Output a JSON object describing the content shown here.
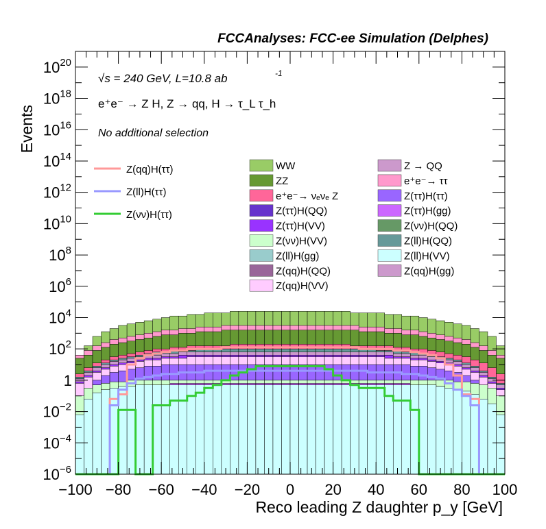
{
  "chart_data": {
    "type": "histogram",
    "title": "FCCAnalyses: FCC-ee Simulation (Delphes)",
    "xlabel": "Reco leading Z daughter p_y [GeV]",
    "ylabel": "Events",
    "xlim": [
      -100,
      100
    ],
    "ylim": [
      1e-06,
      1e+21
    ],
    "log_y": true,
    "x_ticks": [
      "-100",
      "-80",
      "-60",
      "-40",
      "-20",
      "0",
      "20",
      "40",
      "60",
      "80",
      "100"
    ],
    "y_ticks": [
      {
        "base": "10",
        "exp": "-6",
        "pow": -6
      },
      {
        "base": "10",
        "exp": "-4",
        "pow": -4
      },
      {
        "base": "10",
        "exp": "-2",
        "pow": -2
      },
      {
        "base": "1",
        "exp": "",
        "pow": 0
      },
      {
        "base": "10",
        "exp": "2",
        "pow": 2
      },
      {
        "base": "10",
        "exp": "4",
        "pow": 4
      },
      {
        "base": "10",
        "exp": "6",
        "pow": 6
      },
      {
        "base": "10",
        "exp": "8",
        "pow": 8
      },
      {
        "base": "10",
        "exp": "10",
        "pow": 10
      },
      {
        "base": "10",
        "exp": "12",
        "pow": 12
      },
      {
        "base": "10",
        "exp": "14",
        "pow": 14
      },
      {
        "base": "10",
        "exp": "16",
        "pow": 16
      },
      {
        "base": "10",
        "exp": "18",
        "pow": 18
      },
      {
        "base": "10",
        "exp": "20",
        "pow": 20
      }
    ],
    "annotations": {
      "energy": "√s = 240 GeV, L=10.8 ab",
      "energy_exp": "-1",
      "process": "e⁺e⁻ → Z H, Z → qq, H → τ_L τ_h",
      "selection": "No additional selection"
    },
    "stacked_legend": [
      {
        "name": "WW",
        "color": "#99cc66"
      },
      {
        "name": "ZZ",
        "color": "#669933"
      },
      {
        "name": "e⁺e⁻→ νₑνₑ Z",
        "color": "#ff6699"
      },
      {
        "name": "Z(ττ)H(QQ)",
        "color": "#6633cc"
      },
      {
        "name": "Z(ττ)H(VV)",
        "color": "#9933ff"
      },
      {
        "name": "Z(νν)H(VV)",
        "color": "#ccffcc"
      },
      {
        "name": "Z(ll)H(gg)",
        "color": "#99cccc"
      },
      {
        "name": "Z(qq)H(QQ)",
        "color": "#996699"
      },
      {
        "name": "Z(qq)H(VV)",
        "color": "#ffccff"
      },
      {
        "name": "Z → QQ",
        "color": "#cc99cc"
      },
      {
        "name": "e⁺e⁻→ ττ",
        "color": "#ff99cc"
      },
      {
        "name": "Z(ττ)H(ττ)",
        "color": "#9966ff"
      },
      {
        "name": "Z(ττ)H(gg)",
        "color": "#cc66ff"
      },
      {
        "name": "Z(νν)H(QQ)",
        "color": "#669966"
      },
      {
        "name": "Z(ll)H(QQ)",
        "color": "#669999"
      },
      {
        "name": "Z(ll)H(VV)",
        "color": "#ccffff"
      },
      {
        "name": "Z(qq)H(gg)",
        "color": "#cc99cc"
      }
    ],
    "line_series": [
      {
        "name": "Z(qq)H(ττ)",
        "color": "#ff9999"
      },
      {
        "name": "Z(ll)H(ττ)",
        "color": "#9999ff"
      },
      {
        "name": "Z(νν)H(ττ)",
        "color": "#33cc33"
      }
    ],
    "bins_x_low": [
      -100,
      -96,
      -92,
      -88,
      -84,
      -80,
      -76,
      -72,
      -68,
      -64,
      -60,
      -56,
      -52,
      -48,
      -44,
      -40,
      -36,
      -32,
      -28,
      -24,
      -20,
      -16,
      -12,
      -8,
      -4,
      0,
      4,
      8,
      12,
      16,
      20,
      24,
      28,
      32,
      36,
      40,
      44,
      48,
      52,
      56,
      60,
      64,
      68,
      72,
      76,
      80,
      84,
      88,
      92,
      96
    ],
    "stack_layers": [
      {
        "color": "#ccffff",
        "values": [
          -2.2,
          -1.2,
          -0.8,
          -0.6,
          -0.5,
          -0.4,
          -0.4,
          -0.3,
          -0.3,
          -0.3,
          -0.3,
          -0.3,
          -0.3,
          -0.3,
          -0.3,
          -0.3,
          -0.3,
          -0.3,
          -0.3,
          -0.3,
          -0.3,
          -0.3,
          -0.3,
          -0.3,
          -0.3,
          -0.3,
          -0.3,
          -0.3,
          -0.3,
          -0.3,
          -0.3,
          -0.3,
          -0.3,
          -0.3,
          -0.3,
          -0.3,
          -0.3,
          -0.3,
          -0.3,
          -0.3,
          -0.3,
          -0.3,
          -0.4,
          -0.5,
          -0.6,
          -0.7,
          -0.9,
          -1.2,
          -1.5,
          -2.2
        ]
      },
      {
        "color": "#99cccc",
        "values": [
          -6,
          -6,
          -6,
          -6,
          -2.5,
          -2.3,
          -2.1,
          -2.0,
          -1.9,
          -1.8,
          -1.7,
          -1.6,
          -1.6,
          -1.5,
          -1.5,
          -1.5,
          -1.4,
          -1.4,
          -1.4,
          -1.4,
          -1.4,
          -1.4,
          -1.4,
          -1.4,
          -1.4,
          -1.4,
          -1.4,
          -1.4,
          -1.4,
          -1.4,
          -1.4,
          -1.5,
          -1.5,
          -1.5,
          -1.6,
          -1.6,
          -1.7,
          -1.8,
          -1.9,
          -2.0,
          -2.1,
          -2.3,
          -2.5,
          -6,
          -6,
          -6,
          -6,
          -6,
          -6,
          -6
        ]
      },
      {
        "color": "#669966",
        "values": [
          -6,
          -6,
          -6,
          -6,
          -6,
          -6,
          -3.0,
          -3.0,
          -6,
          -2.3,
          -6,
          -2.0,
          -6,
          -6,
          -1.9,
          -6,
          -6,
          -1.8,
          -6,
          -6,
          -6,
          -1.8,
          -1.7,
          -6,
          -1.7,
          -6,
          -6,
          -1.7,
          -1.7,
          -6,
          -1.8,
          -6,
          -1.8,
          -6,
          -6,
          -1.9,
          -6,
          -6,
          -2.0,
          -6,
          -6,
          -2.2,
          -6,
          -6,
          -6,
          -6,
          -6,
          -6,
          -6,
          -6
        ]
      },
      {
        "color": "#996699",
        "values": [
          -6,
          -6,
          -6,
          -6,
          -3.0,
          -3.0,
          -2.8,
          -6,
          -2.5,
          -6,
          -2.2,
          -6,
          -2.1,
          -2.0,
          -6,
          -2.0,
          -2.0,
          -6,
          -2.0,
          -1.9,
          -1.9,
          -6,
          -6,
          -1.9,
          -6,
          -1.9,
          -1.9,
          -6,
          -6,
          -1.9,
          -6,
          -1.9,
          -6,
          -1.9,
          -2.0,
          -6,
          -2.0,
          -2.1,
          -6,
          -2.2,
          -2.3,
          -6,
          -2.5,
          -2.8,
          -3.0,
          -6,
          -6,
          -6,
          -6,
          -6
        ]
      },
      {
        "color": "#cc66ff",
        "values": [
          -6,
          -6,
          -6,
          -1.6,
          -0.8,
          -0.6,
          -0.5,
          -0.4,
          -0.3,
          -0.3,
          -0.3,
          -0.2,
          -0.2,
          -0.2,
          -0.2,
          -0.2,
          -0.2,
          -0.2,
          -0.2,
          -0.2,
          -0.2,
          -0.2,
          -0.2,
          -0.2,
          -0.2,
          -0.2,
          -0.2,
          -0.2,
          -0.2,
          -0.2,
          -0.2,
          -0.2,
          -0.2,
          -0.2,
          -0.2,
          -0.2,
          -0.2,
          -0.2,
          -0.2,
          -0.3,
          -0.3,
          -0.3,
          -0.4,
          -0.5,
          -0.6,
          -0.8,
          -1.6,
          -6,
          -6,
          -6
        ]
      },
      {
        "color": "#6633cc",
        "values": [
          -6,
          -6,
          -6,
          -6,
          -6,
          -6,
          -6,
          -6,
          -6,
          -6,
          -6,
          -6,
          -6,
          -6,
          -6,
          -6,
          -6,
          -6,
          -6,
          -6,
          -6,
          -6,
          -6,
          -6,
          -6,
          -6,
          -6,
          -6,
          -6,
          -6,
          -6,
          -6,
          -6,
          -6,
          -6,
          -6,
          -6,
          -6,
          -6,
          -6,
          -6,
          -6,
          -6,
          -6,
          -6,
          -6,
          -6,
          -6,
          -4.8,
          -4.6
        ]
      },
      {
        "color": "#ccffcc",
        "values": [
          -1.0,
          -0.5,
          -0.3,
          -0.2,
          -0.1,
          -0.1,
          0.0,
          0.0,
          0.0,
          0.0,
          0.0,
          0.0,
          0.0,
          0.0,
          0.0,
          0.0,
          0.0,
          0.0,
          0.0,
          0.0,
          0.0,
          0.0,
          0.0,
          0.0,
          0.0,
          0.0,
          0.0,
          0.0,
          0.0,
          0.0,
          0.0,
          0.0,
          0.0,
          0.0,
          0.0,
          0.0,
          0.0,
          0.0,
          0.0,
          0.0,
          0.0,
          0.0,
          0.0,
          0.0,
          -0.1,
          -0.1,
          -0.2,
          -0.3,
          -0.5,
          -1.0
        ]
      },
      {
        "color": "#9966ff",
        "values": [
          -1.8,
          -0.5,
          0.0,
          0.3,
          0.5,
          0.6,
          0.7,
          0.8,
          0.9,
          0.9,
          1.0,
          1.0,
          1.0,
          1.0,
          1.0,
          1.0,
          1.0,
          1.0,
          1.0,
          1.0,
          1.0,
          1.0,
          1.0,
          1.0,
          1.0,
          1.0,
          1.0,
          1.0,
          1.0,
          1.0,
          1.0,
          1.0,
          1.0,
          1.0,
          1.0,
          1.0,
          1.0,
          1.0,
          1.0,
          0.9,
          0.9,
          0.8,
          0.7,
          0.6,
          0.5,
          0.3,
          0.0,
          -0.5,
          -1.0,
          -1.8
        ]
      },
      {
        "color": "#ffccff",
        "values": [
          -0.2,
          0.2,
          0.5,
          0.7,
          0.9,
          1.0,
          1.1,
          1.2,
          1.3,
          1.3,
          1.4,
          1.4,
          1.4,
          1.5,
          1.5,
          1.5,
          1.5,
          1.5,
          1.5,
          1.5,
          1.5,
          1.5,
          1.5,
          1.5,
          1.5,
          1.5,
          1.5,
          1.5,
          1.5,
          1.5,
          1.5,
          1.5,
          1.5,
          1.5,
          1.5,
          1.5,
          1.4,
          1.4,
          1.4,
          1.3,
          1.3,
          1.2,
          1.1,
          1.0,
          0.9,
          0.7,
          0.5,
          0.2,
          -0.2,
          -0.6
        ]
      },
      {
        "color": "#9933ff",
        "values": [
          -0.1,
          0.3,
          0.6,
          0.8,
          1.0,
          1.1,
          1.2,
          1.3,
          1.4,
          1.4,
          1.5,
          1.5,
          1.6,
          1.6,
          1.6,
          1.6,
          1.6,
          1.6,
          1.6,
          1.6,
          1.6,
          1.6,
          1.6,
          1.6,
          1.6,
          1.6,
          1.6,
          1.6,
          1.6,
          1.6,
          1.6,
          1.6,
          1.6,
          1.6,
          1.6,
          1.6,
          1.6,
          1.5,
          1.5,
          1.4,
          1.4,
          1.3,
          1.2,
          1.1,
          1.0,
          0.8,
          0.6,
          0.3,
          -0.1,
          -0.5
        ]
      },
      {
        "color": "#cc99cc",
        "values": [
          0.1,
          0.5,
          0.8,
          1.0,
          1.2,
          1.3,
          1.4,
          1.5,
          1.6,
          1.6,
          1.7,
          1.7,
          1.8,
          1.8,
          1.8,
          1.8,
          1.8,
          1.8,
          1.8,
          1.8,
          1.8,
          1.8,
          1.8,
          1.8,
          1.8,
          1.8,
          1.8,
          1.8,
          1.8,
          1.8,
          1.8,
          1.8,
          1.8,
          1.8,
          1.8,
          1.8,
          1.8,
          1.7,
          1.7,
          1.6,
          1.6,
          1.5,
          1.4,
          1.3,
          1.2,
          1.0,
          0.8,
          0.5,
          0.1,
          -0.3
        ]
      },
      {
        "color": "#669999",
        "values": [
          0.2,
          0.6,
          0.9,
          1.1,
          1.3,
          1.4,
          1.5,
          1.6,
          1.7,
          1.8,
          1.8,
          1.9,
          1.9,
          1.9,
          2.0,
          2.0,
          2.0,
          2.0,
          2.0,
          2.0,
          2.0,
          2.0,
          2.0,
          2.0,
          2.0,
          2.0,
          2.0,
          2.0,
          2.0,
          2.0,
          2.0,
          2.0,
          2.0,
          2.0,
          2.0,
          1.9,
          1.9,
          1.9,
          1.8,
          1.8,
          1.7,
          1.6,
          1.5,
          1.4,
          1.3,
          1.1,
          0.9,
          0.6,
          0.2,
          -0.2
        ]
      },
      {
        "color": "#ff6699",
        "values": [
          0.4,
          0.8,
          1.1,
          1.3,
          1.5,
          1.6,
          1.7,
          1.8,
          1.9,
          2.0,
          2.0,
          2.1,
          2.1,
          2.2,
          2.2,
          2.2,
          2.2,
          2.2,
          2.3,
          2.3,
          2.3,
          2.3,
          2.3,
          2.3,
          2.3,
          2.3,
          2.3,
          2.3,
          2.3,
          2.3,
          2.3,
          2.3,
          2.2,
          2.2,
          2.2,
          2.2,
          2.2,
          2.1,
          2.1,
          2.0,
          2.0,
          1.9,
          1.8,
          1.7,
          1.6,
          1.5,
          1.3,
          1.1,
          0.8,
          0.4
        ]
      },
      {
        "color": "#669933",
        "values": [
          1.4,
          1.6,
          1.9,
          2.1,
          2.3,
          2.4,
          2.5,
          2.6,
          2.7,
          2.8,
          2.9,
          2.9,
          3.0,
          3.0,
          3.1,
          3.1,
          3.1,
          3.2,
          3.2,
          3.2,
          3.2,
          3.2,
          3.2,
          3.2,
          3.2,
          3.2,
          3.2,
          3.2,
          3.2,
          3.2,
          3.2,
          3.2,
          3.2,
          3.1,
          3.1,
          3.1,
          3.0,
          3.0,
          2.9,
          2.9,
          2.8,
          2.7,
          2.6,
          2.5,
          2.4,
          2.3,
          2.1,
          1.9,
          1.6,
          1.4
        ]
      },
      {
        "color": "#ff99cc",
        "values": [
          1.6,
          1.9,
          2.2,
          2.4,
          2.6,
          2.7,
          2.8,
          2.9,
          3.0,
          3.1,
          3.2,
          3.2,
          3.3,
          3.3,
          3.4,
          3.4,
          3.4,
          3.5,
          3.5,
          3.5,
          3.5,
          3.5,
          3.5,
          3.5,
          3.5,
          3.5,
          3.5,
          3.5,
          3.5,
          3.5,
          3.5,
          3.5,
          3.5,
          3.4,
          3.4,
          3.4,
          3.3,
          3.3,
          3.2,
          3.2,
          3.1,
          3.0,
          2.9,
          2.8,
          2.7,
          2.6,
          2.4,
          2.2,
          1.9,
          1.6
        ]
      },
      {
        "color": "#99cc66",
        "values": [
          1.6,
          2.2,
          2.8,
          3.1,
          3.3,
          3.5,
          3.6,
          3.7,
          3.8,
          3.9,
          4.0,
          4.1,
          4.1,
          4.2,
          4.2,
          4.3,
          4.3,
          4.3,
          4.4,
          4.4,
          4.4,
          4.4,
          4.4,
          4.4,
          4.4,
          4.4,
          4.4,
          4.4,
          4.4,
          4.4,
          4.4,
          4.4,
          4.3,
          4.3,
          4.3,
          4.3,
          4.2,
          4.2,
          4.1,
          4.1,
          4.0,
          3.9,
          3.8,
          3.7,
          3.6,
          3.5,
          3.3,
          3.1,
          2.8,
          2.2
        ]
      }
    ],
    "lines": [
      {
        "color": "#ff9999",
        "values": [
          -6,
          -6,
          -6,
          -6,
          -1.2,
          -0.9,
          1.0,
          1.4,
          1.6,
          1.7,
          1.8,
          1.9,
          1.9,
          2.0,
          2.0,
          2.0,
          2.0,
          2.1,
          2.1,
          2.1,
          2.1,
          2.1,
          2.1,
          2.1,
          2.1,
          2.1,
          2.1,
          2.1,
          2.1,
          2.1,
          2.1,
          2.1,
          2.1,
          2.0,
          2.0,
          2.0,
          2.0,
          1.9,
          1.9,
          1.8,
          1.7,
          1.6,
          1.4,
          1.0,
          0.3,
          -0.9,
          -1.2,
          -6,
          -6,
          -6
        ]
      },
      {
        "color": "#9999ff",
        "values": [
          -6,
          -6,
          -6,
          -6,
          -1.6,
          -0.6,
          -0.2,
          0.1,
          0.2,
          0.3,
          0.4,
          0.4,
          0.5,
          0.5,
          0.5,
          0.6,
          0.6,
          0.6,
          0.6,
          0.6,
          0.6,
          0.6,
          0.6,
          0.6,
          0.6,
          0.6,
          0.6,
          0.6,
          0.6,
          0.6,
          0.6,
          0.6,
          0.6,
          0.6,
          0.5,
          0.5,
          0.5,
          0.5,
          0.4,
          0.4,
          0.3,
          0.2,
          0.1,
          -0.2,
          -0.6,
          -1.0,
          -1.6,
          -6,
          -6,
          -6
        ]
      },
      {
        "color": "#33cc33",
        "values": [
          -6,
          -6,
          -6,
          -6,
          -6,
          -1.9,
          -1.9,
          -6,
          -6,
          -1.6,
          -1.6,
          -1.3,
          -1.3,
          -1.0,
          -0.8,
          -0.5,
          -0.3,
          0.0,
          0.3,
          0.5,
          0.7,
          0.9,
          0.9,
          0.9,
          0.9,
          0.9,
          0.9,
          0.9,
          0.9,
          0.7,
          0.3,
          0.0,
          -0.3,
          -0.5,
          -0.5,
          -0.5,
          -1.0,
          -1.3,
          -1.3,
          -1.9,
          -6,
          -6,
          -6,
          -6,
          -6,
          -6,
          -6,
          -6,
          -6,
          -6
        ]
      }
    ]
  }
}
